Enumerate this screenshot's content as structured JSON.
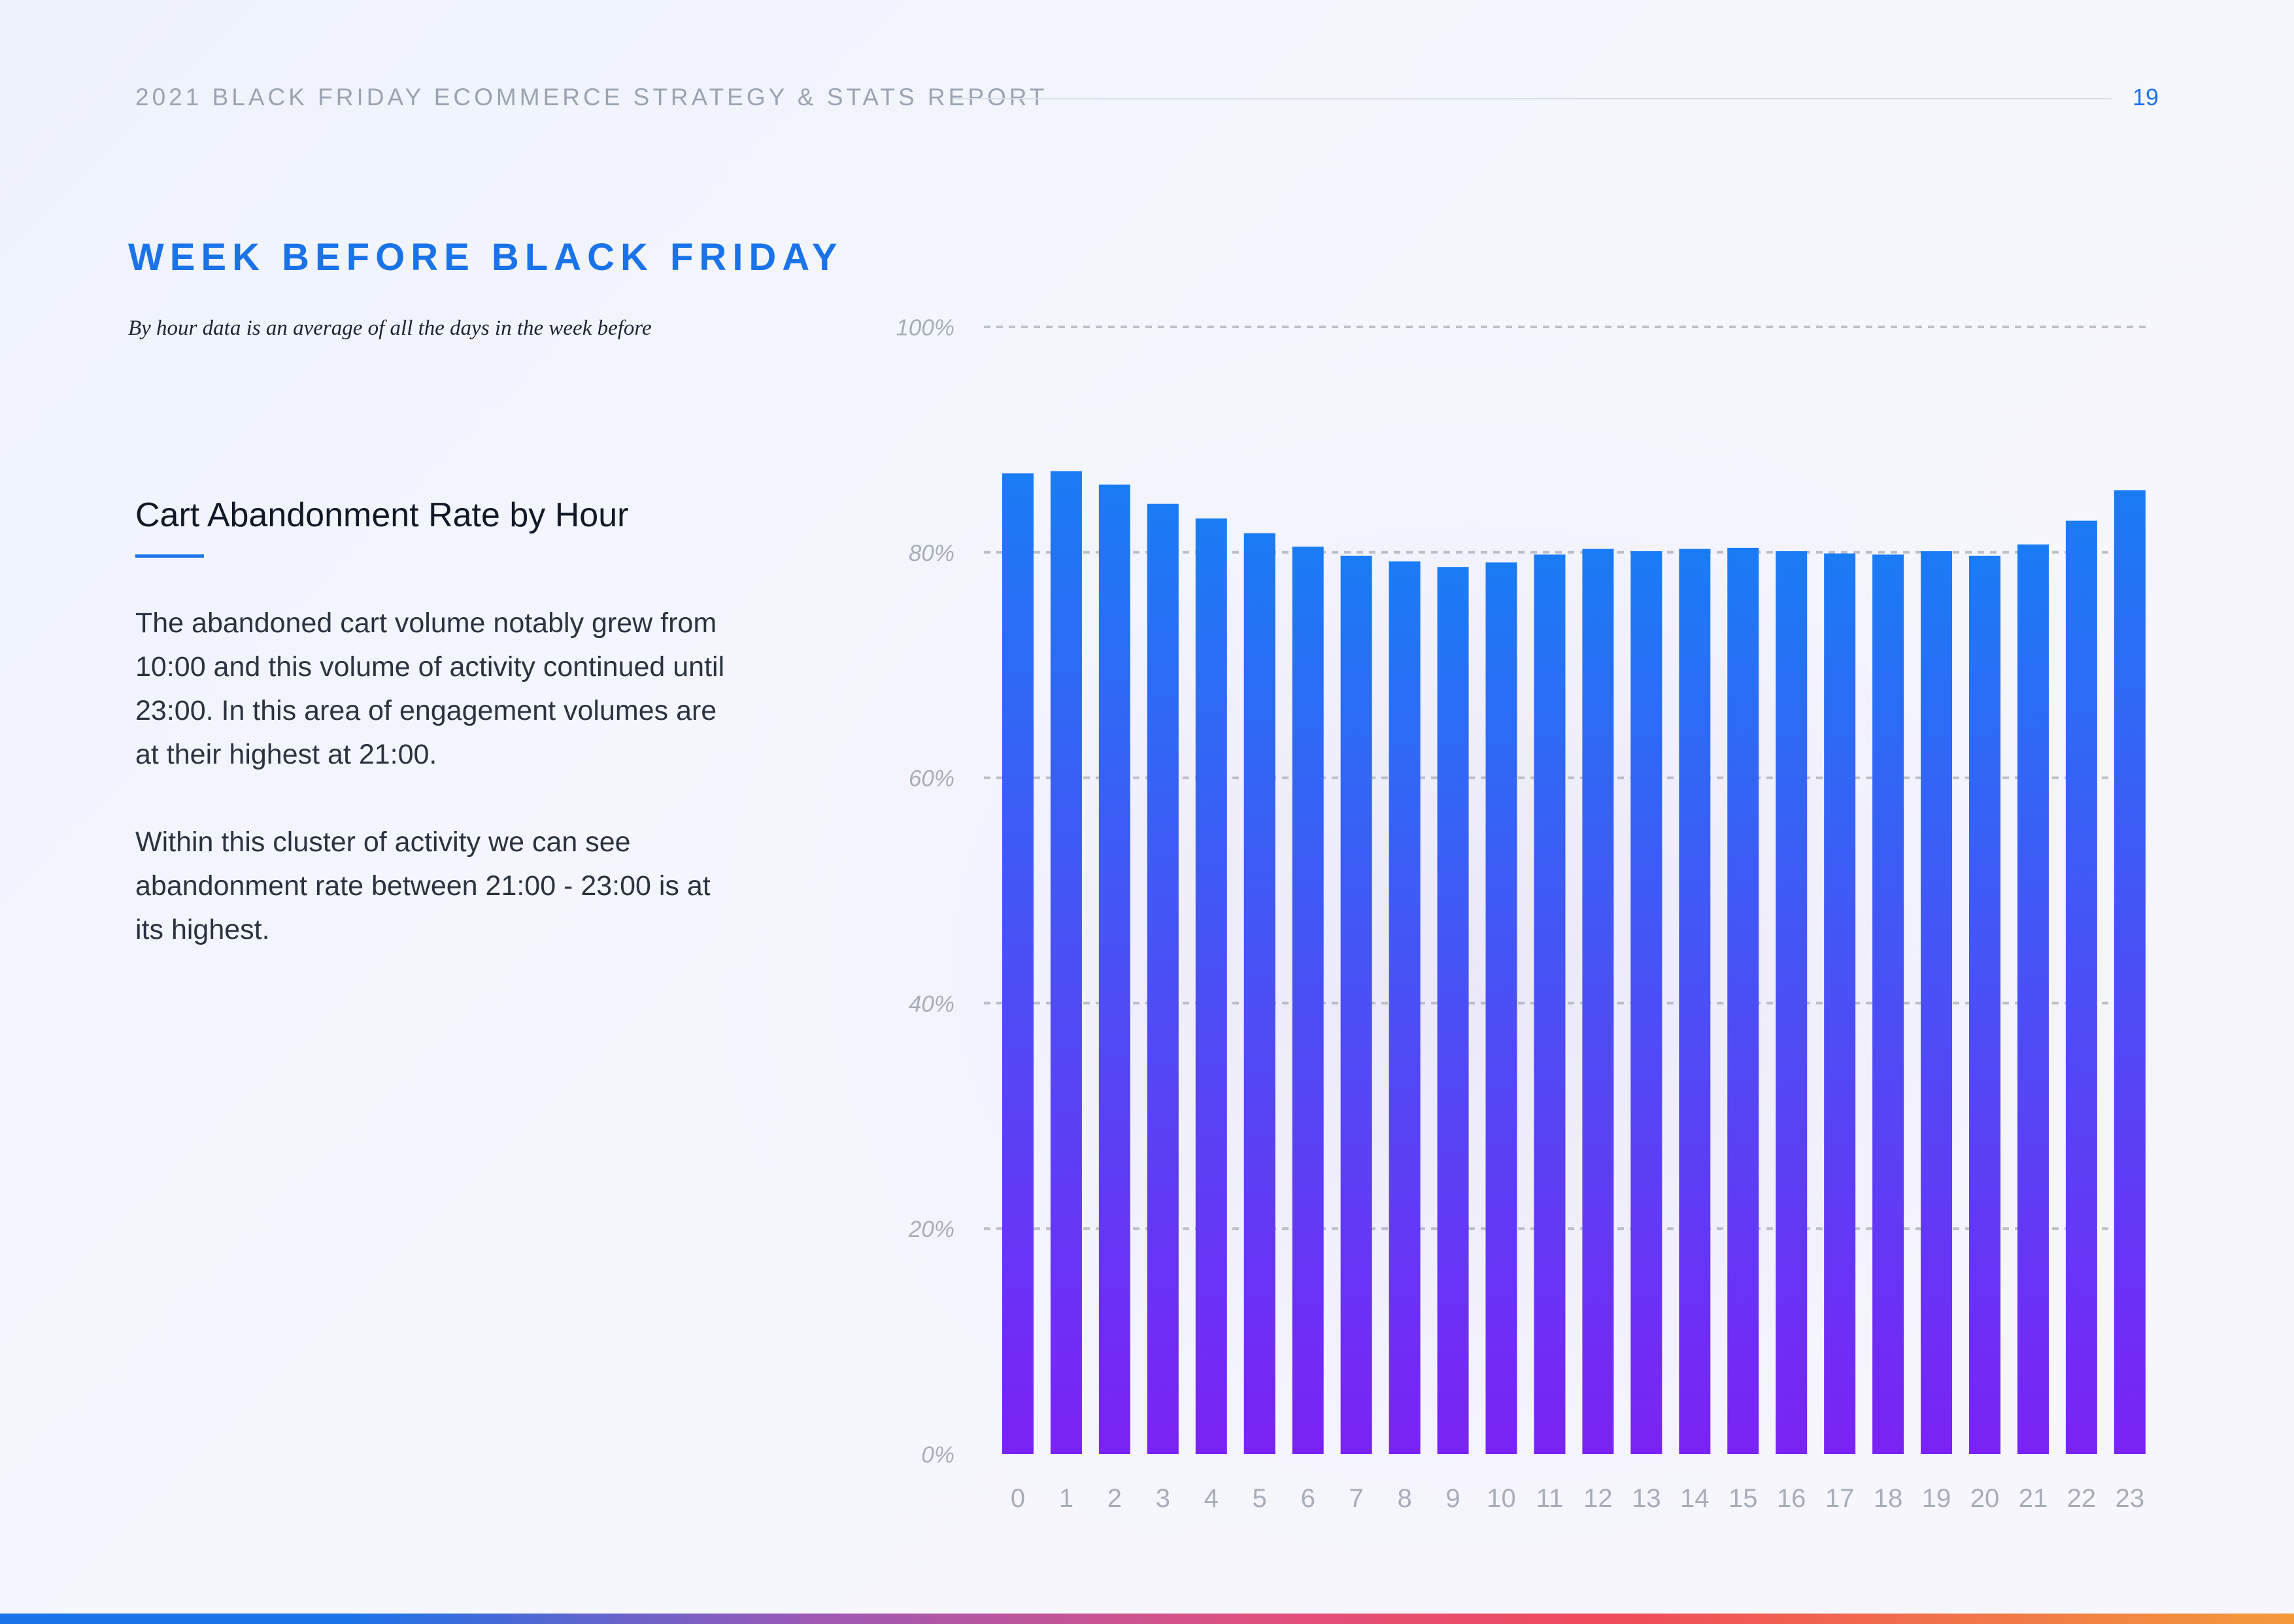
{
  "header": {
    "title": "2021 BLACK FRIDAY ECOMMERCE STRATEGY & STATS REPORT",
    "page_number": "19"
  },
  "section": {
    "title": "WEEK BEFORE BLACK FRIDAY",
    "subtitle": "By hour data is an average of all the days in the week before"
  },
  "panel": {
    "heading": "Cart Abandonment Rate by Hour",
    "paragraph_1": "The abandoned cart volume notably grew from 10:00 and this volume of activity continued until 23:00. In this area of engagement volumes are at their highest at 21:00.",
    "paragraph_2": "Within this cluster of activity we can see abandonment rate between 21:00 - 23:00 is at its highest."
  },
  "colors": {
    "accent": "#1a73e8",
    "bar_top": "#1a7cf5",
    "bar_bottom": "#7b22f5"
  },
  "chart_data": {
    "type": "bar",
    "title": "Cart Abandonment Rate by Hour",
    "xlabel": "",
    "ylabel": "",
    "ylim": [
      0,
      100
    ],
    "yticks": [
      0,
      20,
      40,
      60,
      80,
      100
    ],
    "ytick_labels": [
      "0%",
      "20%",
      "40%",
      "60%",
      "80%",
      "100%"
    ],
    "grid": "dashed horizontal",
    "categories": [
      "0",
      "1",
      "2",
      "3",
      "4",
      "5",
      "6",
      "7",
      "8",
      "9",
      "10",
      "11",
      "12",
      "13",
      "14",
      "15",
      "16",
      "17",
      "18",
      "19",
      "20",
      "21",
      "22",
      "23"
    ],
    "values": [
      87,
      87.2,
      86,
      84.3,
      83,
      81.7,
      80.5,
      79.7,
      79.2,
      78.7,
      79.1,
      79.8,
      80.3,
      80.1,
      80.3,
      80.4,
      80.1,
      79.9,
      79.8,
      80.1,
      79.7,
      80.7,
      82.8,
      85.5
    ]
  }
}
